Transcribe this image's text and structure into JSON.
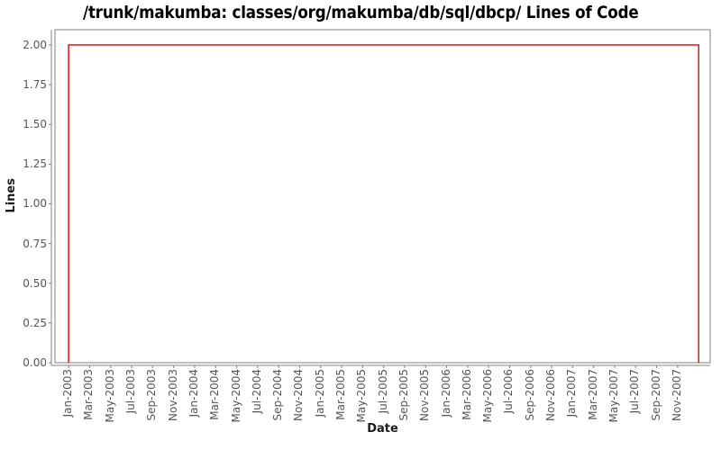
{
  "chart_data": {
    "type": "line",
    "style": "step",
    "title": "/trunk/makumba: classes/org/makumba/db/sql/dbcp/ Lines of Code",
    "xlabel": "Date",
    "ylabel": "Lines",
    "grid": false,
    "legend": "none",
    "background_color": "#ffffff",
    "axis_color": "#808080",
    "tick_label_color": "#555555",
    "x_ticks": [
      "Jan-2003",
      "Mar-2003",
      "May-2003",
      "Jul-2003",
      "Sep-2003",
      "Nov-2003",
      "Jan-2004",
      "Mar-2004",
      "May-2004",
      "Jul-2004",
      "Sep-2004",
      "Nov-2004",
      "Jan-2005",
      "Mar-2005",
      "May-2005",
      "Jul-2005",
      "Sep-2005",
      "Nov-2005",
      "Jan-2006",
      "Mar-2006",
      "May-2006",
      "Jul-2006",
      "Sep-2006",
      "Nov-2006",
      "Jan-2007",
      "Mar-2007",
      "May-2007",
      "Jul-2007",
      "Sep-2007",
      "Nov-2007"
    ],
    "x_tick_month_step": 2,
    "x_range_months": [
      -1.3,
      61.1
    ],
    "y_ticks": [
      "0.00",
      "0.25",
      "0.50",
      "0.75",
      "1.00",
      "1.25",
      "1.50",
      "1.75",
      "2.00"
    ],
    "y_tick_step": 0.25,
    "y_range": [
      0,
      2.096
    ],
    "series": [
      {
        "name": "Lines of Code",
        "color": "#e40000",
        "points_month_value": [
          [
            0,
            0
          ],
          [
            0,
            2
          ],
          [
            60,
            2
          ],
          [
            60,
            0
          ]
        ]
      }
    ]
  }
}
